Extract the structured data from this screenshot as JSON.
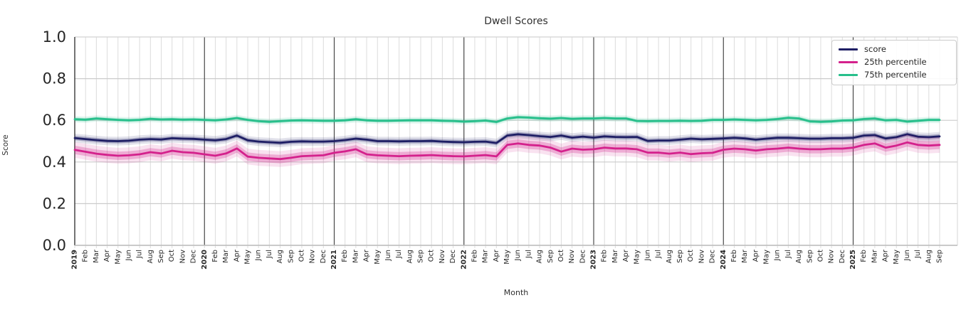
{
  "chart_data": {
    "type": "line",
    "title": "Dwell Scores",
    "xlabel": "Month",
    "ylabel": "Score",
    "ylim": [
      0.0,
      1.0
    ],
    "yticks": [
      0.0,
      0.2,
      0.4,
      0.6,
      0.8,
      1.0
    ],
    "grid": true,
    "legend_position": "upper right",
    "x_labels": [
      "2019",
      "Feb",
      "Mar",
      "Apr",
      "May",
      "Jun",
      "Jul",
      "Aug",
      "Sep",
      "Oct",
      "Nov",
      "Dec",
      "2020",
      "Feb",
      "Mar",
      "Apr",
      "May",
      "Jun",
      "Jul",
      "Aug",
      "Sep",
      "Oct",
      "Nov",
      "Dec",
      "2021",
      "Feb",
      "Mar",
      "Apr",
      "May",
      "Jun",
      "Jul",
      "Aug",
      "Sep",
      "Oct",
      "Nov",
      "Dec",
      "2022",
      "Feb",
      "Mar",
      "Apr",
      "May",
      "Jun",
      "Jul",
      "Aug",
      "Sep",
      "Oct",
      "Nov",
      "Dec",
      "2023",
      "Feb",
      "Mar",
      "Apr",
      "May",
      "Jun",
      "Jul",
      "Aug",
      "Sep",
      "Oct",
      "Nov",
      "Dec",
      "2024",
      "Feb",
      "Mar",
      "Apr",
      "May",
      "Jun",
      "Jul",
      "Aug",
      "Sep",
      "Oct",
      "Nov",
      "Dec",
      "2025",
      "Feb",
      "Mar",
      "Apr",
      "May",
      "Jun",
      "Jul",
      "Aug",
      "Sep"
    ],
    "year_tick_indices": [
      0,
      12,
      24,
      36,
      48,
      60,
      72
    ],
    "series": [
      {
        "name": "score",
        "color": "#1e1e64",
        "band_halfwidth": 0.011,
        "values": [
          0.515,
          0.51,
          0.505,
          0.501,
          0.5,
          0.502,
          0.507,
          0.51,
          0.508,
          0.514,
          0.512,
          0.511,
          0.507,
          0.504,
          0.51,
          0.527,
          0.504,
          0.498,
          0.495,
          0.492,
          0.497,
          0.499,
          0.498,
          0.498,
          0.5,
          0.505,
          0.512,
          0.507,
          0.5,
          0.5,
          0.499,
          0.5,
          0.5,
          0.501,
          0.498,
          0.496,
          0.495,
          0.497,
          0.498,
          0.491,
          0.527,
          0.533,
          0.529,
          0.524,
          0.52,
          0.527,
          0.517,
          0.522,
          0.517,
          0.523,
          0.52,
          0.519,
          0.52,
          0.501,
          0.503,
          0.503,
          0.507,
          0.512,
          0.509,
          0.511,
          0.513,
          0.516,
          0.513,
          0.507,
          0.512,
          0.516,
          0.516,
          0.514,
          0.512,
          0.512,
          0.514,
          0.514,
          0.516,
          0.527,
          0.529,
          0.513,
          0.519,
          0.533,
          0.521,
          0.519,
          0.523
        ]
      },
      {
        "name": "25th percentile",
        "color": "#d4218c",
        "band_halfwidth": 0.02,
        "values": [
          0.458,
          0.449,
          0.44,
          0.434,
          0.43,
          0.432,
          0.437,
          0.447,
          0.441,
          0.454,
          0.447,
          0.444,
          0.437,
          0.43,
          0.441,
          0.465,
          0.426,
          0.42,
          0.417,
          0.414,
          0.42,
          0.428,
          0.43,
          0.432,
          0.444,
          0.451,
          0.461,
          0.437,
          0.432,
          0.43,
          0.428,
          0.43,
          0.431,
          0.433,
          0.43,
          0.428,
          0.427,
          0.43,
          0.433,
          0.427,
          0.482,
          0.489,
          0.482,
          0.479,
          0.469,
          0.45,
          0.464,
          0.459,
          0.461,
          0.469,
          0.465,
          0.465,
          0.461,
          0.445,
          0.445,
          0.44,
          0.445,
          0.438,
          0.442,
          0.444,
          0.459,
          0.464,
          0.461,
          0.455,
          0.461,
          0.464,
          0.469,
          0.464,
          0.461,
          0.461,
          0.464,
          0.464,
          0.469,
          0.482,
          0.489,
          0.469,
          0.479,
          0.494,
          0.482,
          0.479,
          0.482
        ]
      },
      {
        "name": "75th percentile",
        "color": "#27bf8b",
        "band_halfwidth": 0.008,
        "values": [
          0.605,
          0.603,
          0.609,
          0.605,
          0.602,
          0.6,
          0.602,
          0.607,
          0.604,
          0.605,
          0.603,
          0.604,
          0.602,
          0.6,
          0.604,
          0.611,
          0.602,
          0.596,
          0.593,
          0.596,
          0.599,
          0.6,
          0.599,
          0.598,
          0.598,
          0.6,
          0.605,
          0.6,
          0.598,
          0.598,
          0.599,
          0.6,
          0.6,
          0.6,
          0.598,
          0.597,
          0.594,
          0.596,
          0.599,
          0.592,
          0.609,
          0.615,
          0.613,
          0.61,
          0.608,
          0.611,
          0.607,
          0.609,
          0.609,
          0.611,
          0.609,
          0.609,
          0.597,
          0.596,
          0.597,
          0.597,
          0.598,
          0.597,
          0.598,
          0.602,
          0.602,
          0.604,
          0.602,
          0.6,
          0.602,
          0.606,
          0.612,
          0.609,
          0.595,
          0.593,
          0.595,
          0.599,
          0.6,
          0.606,
          0.609,
          0.6,
          0.602,
          0.594,
          0.598,
          0.602,
          0.602
        ]
      }
    ]
  }
}
